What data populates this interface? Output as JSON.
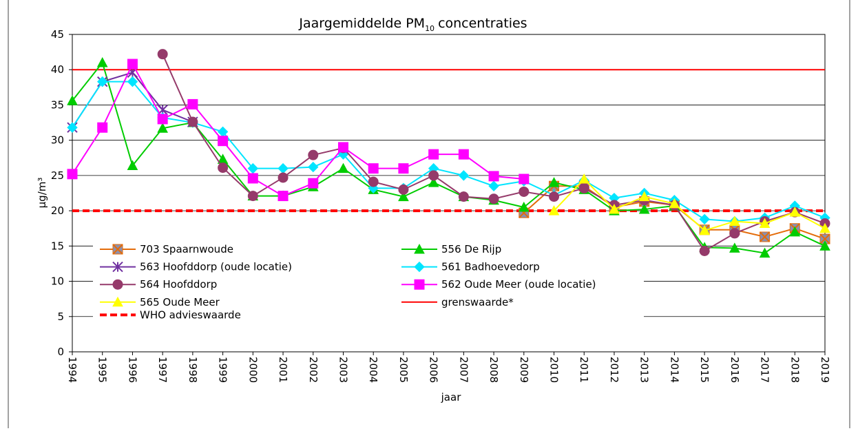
{
  "chart_data": {
    "type": "line",
    "title": {
      "text": "Jaargemiddelde PM",
      "subscript": "10",
      "suffix": "concentraties"
    },
    "y_label": "µg/m³",
    "x_label": "jaar",
    "categories": [
      "1994",
      "1995",
      "1996",
      "1997",
      "1998",
      "1999",
      "2000",
      "2001",
      "2002",
      "2003",
      "2004",
      "2005",
      "2006",
      "2007",
      "2008",
      "2009",
      "2010",
      "2011",
      "2012",
      "2013",
      "2014",
      "2015",
      "2016",
      "2017",
      "2018",
      "2019"
    ],
    "ylim": [
      0,
      45
    ],
    "yticks": [
      0,
      5,
      10,
      15,
      20,
      25,
      30,
      35,
      40,
      45
    ],
    "grid": true,
    "series": [
      {
        "name": "703 Spaarnwoude",
        "color": "#e46c0a",
        "marker": "square-x",
        "values": [
          null,
          null,
          null,
          null,
          null,
          null,
          null,
          null,
          null,
          null,
          null,
          null,
          null,
          null,
          null,
          19.7,
          23.5,
          23.5,
          20.5,
          21.3,
          20.8,
          17.3,
          17.3,
          16.3,
          17.5,
          16.0
        ]
      },
      {
        "name": "556 De Rijp",
        "color": "#00cc00",
        "marker": "triangle",
        "values": [
          35.6,
          41,
          26.4,
          31.7,
          32.5,
          27.3,
          22.1,
          22.1,
          23.4,
          26,
          23,
          22,
          24,
          22,
          21.5,
          20.5,
          24,
          23,
          20,
          20.2,
          20.7,
          14.8,
          14.7,
          14,
          17,
          15
        ]
      },
      {
        "name": "563 Hoofddorp (oude locatie)",
        "color": "#7030a0",
        "marker": "asterisk",
        "values": [
          31.8,
          38.3,
          39.6,
          34.3,
          32.6,
          null,
          null,
          null,
          null,
          null,
          null,
          null,
          null,
          null,
          null,
          null,
          null,
          null,
          null,
          null,
          null,
          null,
          null,
          null,
          null,
          null
        ]
      },
      {
        "name": "561 Badhoevedorp",
        "color": "#00e5ff",
        "marker": "diamond",
        "values": [
          31.8,
          38.3,
          38.3,
          33.2,
          32.5,
          31.2,
          26,
          26,
          26.2,
          28,
          23.2,
          23.2,
          26,
          25,
          23.5,
          24.2,
          22.2,
          24.3,
          21.8,
          22.5,
          21.5,
          18.8,
          18.5,
          19,
          20.7,
          19
        ]
      },
      {
        "name": "564 Hoofddorp",
        "color": "#953a6a",
        "marker": "circle",
        "values": [
          null,
          null,
          null,
          42.2,
          32.6,
          26.1,
          22.1,
          24.7,
          27.9,
          28.9,
          24.1,
          23,
          25,
          22,
          21.7,
          22.7,
          22,
          23.2,
          20.8,
          21.5,
          20.8,
          14.3,
          16.8,
          18.5,
          19.8,
          18.2
        ]
      },
      {
        "name": "562 Oude Meer (oude locatie)",
        "color": "#ff00ff",
        "marker": "square",
        "values": [
          25.2,
          31.8,
          40.8,
          33,
          35.1,
          29.9,
          24.6,
          22.1,
          23.9,
          29,
          26,
          26,
          28,
          28,
          24.9,
          24.5,
          null,
          null,
          null,
          null,
          null,
          null,
          null,
          null,
          null,
          null
        ]
      },
      {
        "name": "565 Oude Meer",
        "color": "#ffff00",
        "marker": "triangle",
        "values": [
          null,
          null,
          null,
          null,
          null,
          null,
          null,
          null,
          null,
          null,
          null,
          null,
          null,
          null,
          null,
          null,
          20,
          24.5,
          20.2,
          22,
          21,
          17.2,
          18.5,
          18.2,
          19.8,
          17.5
        ]
      }
    ],
    "reference_lines": [
      {
        "name": "grenswaarde*",
        "value": 40,
        "color": "#ff0000",
        "dashed": false
      },
      {
        "name": "WHO advieswaarde",
        "value": 20,
        "color": "#ff0000",
        "dashed": true
      }
    ]
  }
}
